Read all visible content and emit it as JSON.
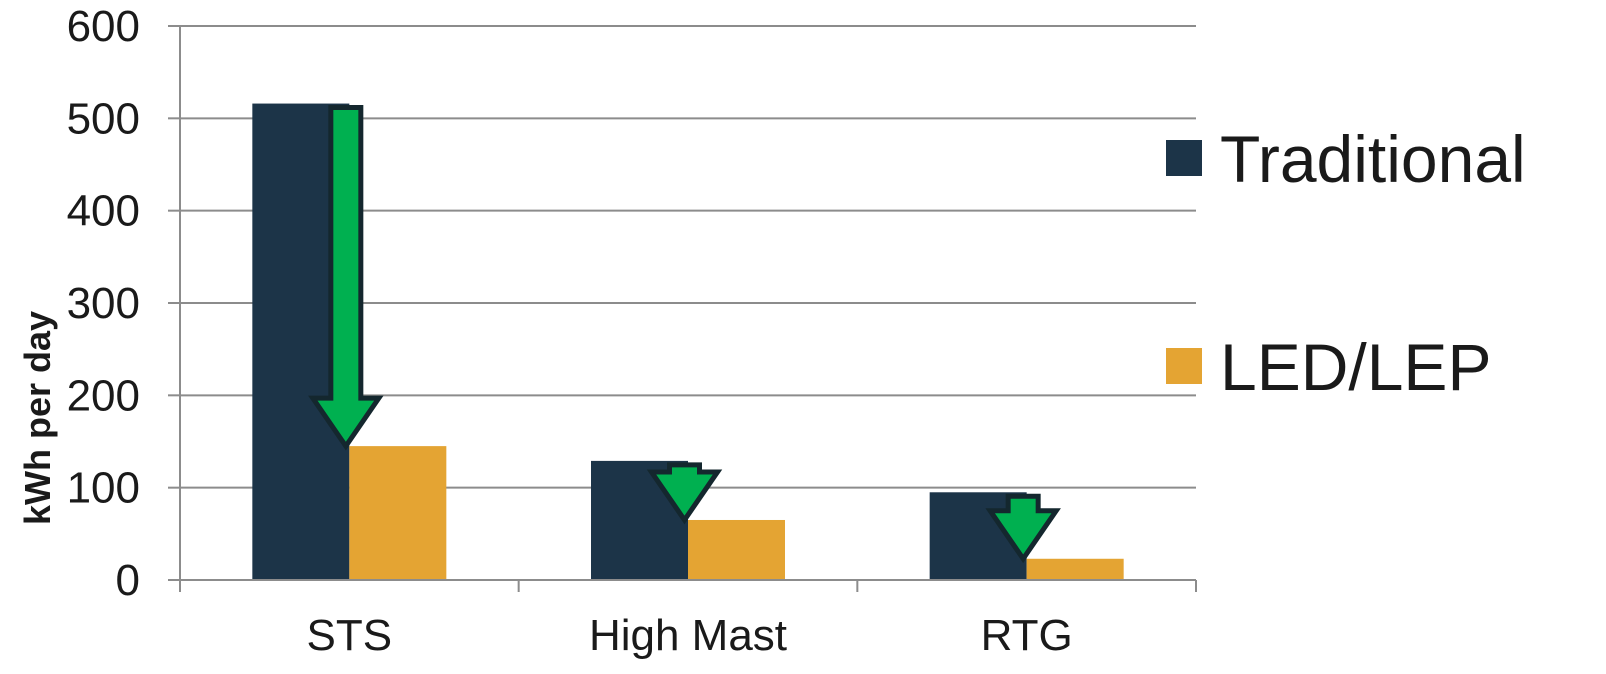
{
  "chart_data": {
    "type": "bar",
    "title": "",
    "xlabel": "",
    "ylabel": "kWh per day",
    "categories": [
      "STS",
      "High Mast",
      "RTG"
    ],
    "series": [
      {
        "name": "Traditional",
        "color": "#1c3448",
        "values": [
          516,
          129,
          95
        ]
      },
      {
        "name": "LED/LEP",
        "color": "#e4a433",
        "values": [
          145,
          65,
          23
        ]
      }
    ],
    "ylim": [
      0,
      600
    ],
    "yticks": [
      0,
      100,
      200,
      300,
      400,
      500,
      600
    ],
    "grid": true,
    "legend_position": "right",
    "annotations": "green down arrows indicating reduction from Traditional to LED/LEP",
    "arrow_color": "#00b050",
    "arrow_outline": "#14272e"
  }
}
